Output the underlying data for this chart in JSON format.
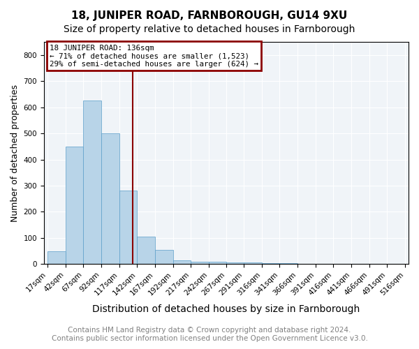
{
  "title": "18, JUNIPER ROAD, FARNBOROUGH, GU14 9XU",
  "subtitle": "Size of property relative to detached houses in Farnborough",
  "xlabel": "Distribution of detached houses by size in Farnborough",
  "ylabel": "Number of detached properties",
  "footer_line1": "Contains HM Land Registry data © Crown copyright and database right 2024.",
  "footer_line2": "Contains public sector information licensed under the Open Government Licence v3.0.",
  "property_size": 136,
  "annotation_title": "18 JUNIPER ROAD: 136sqm",
  "annotation_line1": "← 71% of detached houses are smaller (1,523)",
  "annotation_line2": "29% of semi-detached houses are larger (624) →",
  "bar_edges": [
    17,
    42,
    67,
    92,
    117,
    142,
    167,
    192,
    217,
    242,
    267,
    291,
    316,
    341,
    366,
    391,
    416,
    441,
    466,
    491,
    516
  ],
  "bar_heights": [
    50,
    450,
    625,
    500,
    280,
    105,
    55,
    15,
    10,
    8,
    5,
    5,
    4,
    3,
    2,
    1,
    1,
    1,
    1,
    1
  ],
  "bar_color": "#b8d4e8",
  "bar_edgecolor": "#5a9ec9",
  "vline_color": "#8b0000",
  "vline_x": 136,
  "annotation_box_color": "#8b0000",
  "ylim": [
    0,
    850
  ],
  "yticks": [
    0,
    100,
    200,
    300,
    400,
    500,
    600,
    700,
    800
  ],
  "background_color": "#f0f4f8",
  "title_fontsize": 11,
  "subtitle_fontsize": 10,
  "xlabel_fontsize": 10,
  "ylabel_fontsize": 9,
  "footer_fontsize": 7.5,
  "tick_label_fontsize": 7.5
}
